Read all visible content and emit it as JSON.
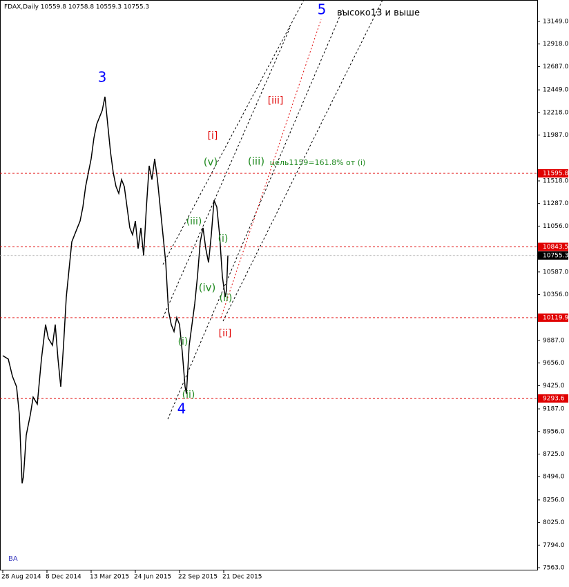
{
  "chart_data": {
    "type": "line",
    "title": "FDAX,Daily  10559.8 10758.8 10559.3 10755.3",
    "watermark": "BA",
    "series": [
      {
        "name": "FDAX",
        "color": "#000000",
        "x": [
          0,
          8,
          14,
          20,
          24,
          28,
          30,
          34,
          40,
          44,
          50,
          56,
          62,
          66,
          72,
          76,
          80,
          84,
          88,
          92,
          96,
          100,
          104,
          108,
          112,
          116,
          120,
          124,
          128,
          132,
          136,
          140,
          144,
          148,
          152,
          156,
          160,
          164,
          168,
          172,
          176,
          180,
          184,
          188,
          192,
          196,
          200,
          204,
          208,
          212,
          216,
          220,
          224,
          228,
          232,
          236,
          240,
          244,
          248,
          252,
          256,
          260,
          264,
          266,
          270,
          274,
          278,
          282,
          286,
          290,
          294,
          298,
          302,
          306,
          310,
          314,
          318,
          322,
          324,
          326
        ],
        "values": [
          9731,
          9696,
          9520,
          9413,
          9130,
          8425,
          8495,
          8918,
          9130,
          9307,
          9236,
          9696,
          10049,
          9908,
          9837,
          10049,
          9696,
          9413,
          9837,
          10331,
          10614,
          10896,
          10967,
          11038,
          11108,
          11250,
          11461,
          11603,
          11744,
          11956,
          12097,
          12168,
          12238,
          12379,
          12097,
          11815,
          11603,
          11461,
          11391,
          11532,
          11461,
          11250,
          11038,
          10967,
          11108,
          10826,
          11038,
          10755,
          11250,
          11673,
          11532,
          11744,
          11532,
          11250,
          10967,
          10684,
          10190,
          10049,
          9978,
          10120,
          10049,
          9766,
          9413,
          9342,
          9837,
          10049,
          10261,
          10543,
          10896,
          11038,
          10826,
          10684,
          10967,
          11320,
          11250,
          10967,
          10543,
          10331,
          10402,
          10755
        ]
      }
    ],
    "xlim": [
      -4,
      774
    ],
    "xticks": [
      {
        "value": 0,
        "label": "28 Aug 2014"
      },
      {
        "value": 64,
        "label": "8 Dec 2014"
      },
      {
        "value": 128,
        "label": "13 Mar 2015"
      },
      {
        "value": 192,
        "label": "24 Jun 2015"
      },
      {
        "value": 256,
        "label": "22 Sep 2015"
      },
      {
        "value": 320,
        "label": "21 Dec 2015"
      }
    ],
    "ylim": [
      7535,
      13368
    ],
    "yticks": [
      {
        "value": 13149,
        "label": "13149.0"
      },
      {
        "value": 12918,
        "label": "12918.0"
      },
      {
        "value": 12687,
        "label": "12687.0"
      },
      {
        "value": 12449,
        "label": "12449.0"
      },
      {
        "value": 12218,
        "label": "12218.0"
      },
      {
        "value": 11987,
        "label": "11987.0"
      },
      {
        "value": 11518,
        "label": "11518.0"
      },
      {
        "value": 11287,
        "label": "11287.0"
      },
      {
        "value": 11056,
        "label": "11056.0"
      },
      {
        "value": 10587,
        "label": "10587.0"
      },
      {
        "value": 10356,
        "label": "10356.0"
      },
      {
        "value": 9887,
        "label": "9887.0"
      },
      {
        "value": 9656,
        "label": "9656.0"
      },
      {
        "value": 9425,
        "label": "9425.0"
      },
      {
        "value": 9187,
        "label": "9187.0"
      },
      {
        "value": 8956,
        "label": "8956.0"
      },
      {
        "value": 8725,
        "label": "8725.0"
      },
      {
        "value": 8494,
        "label": "8494.0"
      },
      {
        "value": 8256,
        "label": "8256.0"
      },
      {
        "value": 8025,
        "label": "8025.0"
      },
      {
        "value": 7794,
        "label": "7794.0"
      },
      {
        "value": 7563,
        "label": "7563.0"
      }
    ],
    "levels": [
      11595.8,
      10843.5,
      10119.9,
      9293.6
    ],
    "level_color": "#e00000",
    "current_price": 10755.3,
    "annotations": [
      {
        "text": "3",
        "color": "#0000ff"
      },
      {
        "text": "4",
        "color": "#0000ff"
      },
      {
        "text": "5",
        "color": "#0000ff"
      },
      {
        "text": "высоко13 и выше",
        "color": "#000000"
      },
      {
        "text": "[i]",
        "color": "#e00000"
      },
      {
        "text": "[ii]",
        "color": "#e00000"
      },
      {
        "text": "[iii]",
        "color": "#e00000"
      },
      {
        "text": "(v)",
        "color": "#228b22"
      },
      {
        "text": "(iii)",
        "color": "#228b22"
      },
      {
        "text": "цель1159=161.8% от (i)",
        "color": "#228b22"
      },
      {
        "text": "(iii)",
        "color": "#228b22"
      },
      {
        "text": "(i)",
        "color": "#228b22"
      },
      {
        "text": "(iv)",
        "color": "#228b22"
      },
      {
        "text": "(ii)",
        "color": "#228b22"
      },
      {
        "text": "(i)",
        "color": "#228b22"
      },
      {
        "text": "(ii)",
        "color": "#228b22"
      }
    ]
  }
}
